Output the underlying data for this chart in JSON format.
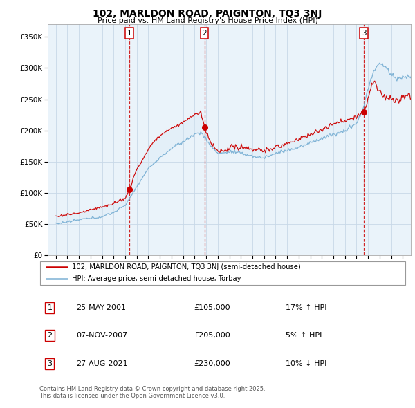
{
  "title": "102, MARLDON ROAD, PAIGNTON, TQ3 3NJ",
  "subtitle": "Price paid vs. HM Land Registry's House Price Index (HPI)",
  "legend_line1": "102, MARLDON ROAD, PAIGNTON, TQ3 3NJ (semi-detached house)",
  "legend_line2": "HPI: Average price, semi-detached house, Torbay",
  "transactions": [
    {
      "num": 1,
      "date": "25-MAY-2001",
      "price": 105000,
      "hpi_rel": "17% ↑ HPI",
      "x": 2001.38
    },
    {
      "num": 2,
      "date": "07-NOV-2007",
      "price": 205000,
      "hpi_rel": "5% ↑ HPI",
      "x": 2007.85
    },
    {
      "num": 3,
      "date": "27-AUG-2021",
      "price": 230000,
      "hpi_rel": "10% ↓ HPI",
      "x": 2021.65
    }
  ],
  "vline_color": "#cc0000",
  "hpi_color": "#7ab0d4",
  "sale_color": "#cc0000",
  "marker_color": "#cc0000",
  "fill_color": "#d8e8f5",
  "footer": "Contains HM Land Registry data © Crown copyright and database right 2025.\nThis data is licensed under the Open Government Licence v3.0.",
  "ylim": [
    0,
    370000
  ],
  "yticks": [
    0,
    50000,
    100000,
    150000,
    200000,
    250000,
    300000,
    350000
  ],
  "background_color": "#ffffff",
  "plot_bg_color": "#eaf3fa",
  "grid_color": "#c8d8e8"
}
